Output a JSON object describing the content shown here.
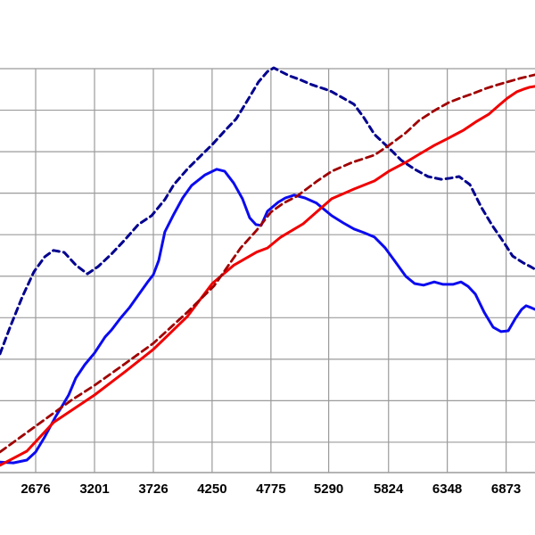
{
  "page": {
    "background": "#ffffff"
  },
  "chart_data": {
    "type": "line",
    "title": "",
    "xlabel": "",
    "ylabel": "",
    "x_axis": {
      "tick_labels": [
        "2676",
        "3201",
        "3726",
        "4250",
        "4775",
        "5290",
        "5824",
        "6348",
        "6873"
      ],
      "tick_values": [
        2676,
        3201,
        3726,
        4250,
        4775,
        5290,
        5824,
        6348,
        6873
      ],
      "range_estimate": [
        2358,
        7131
      ]
    },
    "y_axis": {
      "tick_labels": [],
      "labels_visible": false,
      "note": "no y-axis scale visible in image (cropped); point values are fraction of plot height above bottom axis",
      "range": [
        0,
        1.01
      ]
    },
    "grid": {
      "visible": true,
      "color": "#9b9b9b"
    },
    "axis_line_color": "#9b9b9b",
    "tick_label_color": "#000000",
    "legend": {
      "visible": false
    },
    "series": [
      {
        "name": "blue-solid",
        "style": "solid",
        "color": "#0b0bf0",
        "width": 3,
        "points": [
          [
            2358,
            0.026
          ],
          [
            2477,
            0.024
          ],
          [
            2597,
            0.031
          ],
          [
            2676,
            0.051
          ],
          [
            2756,
            0.088
          ],
          [
            2851,
            0.137
          ],
          [
            2915,
            0.166
          ],
          [
            2970,
            0.192
          ],
          [
            3034,
            0.234
          ],
          [
            3114,
            0.267
          ],
          [
            3201,
            0.296
          ],
          [
            3296,
            0.336
          ],
          [
            3352,
            0.353
          ],
          [
            3432,
            0.382
          ],
          [
            3511,
            0.408
          ],
          [
            3591,
            0.439
          ],
          [
            3670,
            0.47
          ],
          [
            3726,
            0.49
          ],
          [
            3774,
            0.525
          ],
          [
            3829,
            0.596
          ],
          [
            3909,
            0.64
          ],
          [
            3988,
            0.68
          ],
          [
            4068,
            0.711
          ],
          [
            4187,
            0.737
          ],
          [
            4291,
            0.751
          ],
          [
            4362,
            0.746
          ],
          [
            4442,
            0.717
          ],
          [
            4521,
            0.678
          ],
          [
            4585,
            0.631
          ],
          [
            4641,
            0.614
          ],
          [
            4688,
            0.612
          ],
          [
            4744,
            0.647
          ],
          [
            4839,
            0.669
          ],
          [
            4903,
            0.68
          ],
          [
            4983,
            0.687
          ],
          [
            5078,
            0.68
          ],
          [
            5182,
            0.667
          ],
          [
            5317,
            0.636
          ],
          [
            5420,
            0.618
          ],
          [
            5516,
            0.603
          ],
          [
            5603,
            0.594
          ],
          [
            5699,
            0.583
          ],
          [
            5794,
            0.556
          ],
          [
            5882,
            0.523
          ],
          [
            5977,
            0.486
          ],
          [
            6057,
            0.468
          ],
          [
            6136,
            0.464
          ],
          [
            6232,
            0.472
          ],
          [
            6311,
            0.466
          ],
          [
            6399,
            0.466
          ],
          [
            6470,
            0.472
          ],
          [
            6534,
            0.461
          ],
          [
            6598,
            0.442
          ],
          [
            6677,
            0.397
          ],
          [
            6757,
            0.36
          ],
          [
            6828,
            0.349
          ],
          [
            6892,
            0.351
          ],
          [
            6956,
            0.382
          ],
          [
            7011,
            0.404
          ],
          [
            7051,
            0.413
          ],
          [
            7099,
            0.408
          ],
          [
            7131,
            0.404
          ]
        ]
      },
      {
        "name": "blue-dashed",
        "style": "dashed",
        "color": "#00008f",
        "width": 3,
        "dash": [
          7,
          5
        ],
        "points": [
          [
            2358,
            0.294
          ],
          [
            2453,
            0.364
          ],
          [
            2557,
            0.435
          ],
          [
            2660,
            0.497
          ],
          [
            2756,
            0.534
          ],
          [
            2835,
            0.55
          ],
          [
            2931,
            0.545
          ],
          [
            3034,
            0.514
          ],
          [
            3137,
            0.492
          ],
          [
            3233,
            0.51
          ],
          [
            3352,
            0.541
          ],
          [
            3471,
            0.576
          ],
          [
            3591,
            0.614
          ],
          [
            3710,
            0.636
          ],
          [
            3829,
            0.676
          ],
          [
            3909,
            0.713
          ],
          [
            4028,
            0.751
          ],
          [
            4148,
            0.784
          ],
          [
            4251,
            0.812
          ],
          [
            4362,
            0.846
          ],
          [
            4466,
            0.876
          ],
          [
            4569,
            0.923
          ],
          [
            4664,
            0.967
          ],
          [
            4744,
            0.993
          ],
          [
            4800,
            1.002
          ],
          [
            4863,
            0.993
          ],
          [
            4943,
            0.982
          ],
          [
            5023,
            0.974
          ],
          [
            5142,
            0.96
          ],
          [
            5261,
            0.949
          ],
          [
            5317,
            0.943
          ],
          [
            5420,
            0.927
          ],
          [
            5516,
            0.912
          ],
          [
            5603,
            0.879
          ],
          [
            5699,
            0.837
          ],
          [
            5826,
            0.804
          ],
          [
            5938,
            0.773
          ],
          [
            6057,
            0.751
          ],
          [
            6176,
            0.733
          ],
          [
            6295,
            0.726
          ],
          [
            6375,
            0.729
          ],
          [
            6454,
            0.733
          ],
          [
            6550,
            0.713
          ],
          [
            6653,
            0.656
          ],
          [
            6749,
            0.612
          ],
          [
            6852,
            0.57
          ],
          [
            6931,
            0.536
          ],
          [
            7027,
            0.519
          ],
          [
            7091,
            0.51
          ],
          [
            7131,
            0.503
          ]
        ]
      },
      {
        "name": "red-solid",
        "style": "solid",
        "color": "#f00000",
        "width": 3,
        "points": [
          [
            2358,
            0.018
          ],
          [
            2597,
            0.053
          ],
          [
            2835,
            0.124
          ],
          [
            3201,
            0.192
          ],
          [
            3471,
            0.249
          ],
          [
            3726,
            0.305
          ],
          [
            4028,
            0.386
          ],
          [
            4251,
            0.468
          ],
          [
            4442,
            0.513
          ],
          [
            4648,
            0.546
          ],
          [
            4744,
            0.556
          ],
          [
            4863,
            0.583
          ],
          [
            5062,
            0.616
          ],
          [
            5317,
            0.678
          ],
          [
            5516,
            0.702
          ],
          [
            5699,
            0.722
          ],
          [
            5826,
            0.746
          ],
          [
            5977,
            0.768
          ],
          [
            6097,
            0.788
          ],
          [
            6232,
            0.81
          ],
          [
            6359,
            0.828
          ],
          [
            6494,
            0.848
          ],
          [
            6613,
            0.87
          ],
          [
            6717,
            0.887
          ],
          [
            6812,
            0.91
          ],
          [
            6884,
            0.927
          ],
          [
            6971,
            0.943
          ],
          [
            7027,
            0.949
          ],
          [
            7083,
            0.954
          ],
          [
            7131,
            0.956
          ]
        ]
      },
      {
        "name": "dark-red-dashed",
        "style": "dashed",
        "color": "#a00000",
        "width": 2.8,
        "dash": [
          8,
          5
        ],
        "points": [
          [
            2358,
            0.051
          ],
          [
            2676,
            0.115
          ],
          [
            2994,
            0.179
          ],
          [
            3201,
            0.216
          ],
          [
            3471,
            0.269
          ],
          [
            3726,
            0.32
          ],
          [
            4028,
            0.397
          ],
          [
            4267,
            0.462
          ],
          [
            4505,
            0.556
          ],
          [
            4648,
            0.6
          ],
          [
            4775,
            0.645
          ],
          [
            4887,
            0.667
          ],
          [
            5006,
            0.684
          ],
          [
            5189,
            0.722
          ],
          [
            5317,
            0.746
          ],
          [
            5500,
            0.768
          ],
          [
            5699,
            0.786
          ],
          [
            5826,
            0.81
          ],
          [
            5977,
            0.841
          ],
          [
            6097,
            0.872
          ],
          [
            6232,
            0.896
          ],
          [
            6359,
            0.916
          ],
          [
            6478,
            0.929
          ],
          [
            6574,
            0.938
          ],
          [
            6693,
            0.951
          ],
          [
            6796,
            0.96
          ],
          [
            6884,
            0.967
          ],
          [
            6995,
            0.976
          ],
          [
            7131,
            0.985
          ]
        ]
      }
    ]
  }
}
